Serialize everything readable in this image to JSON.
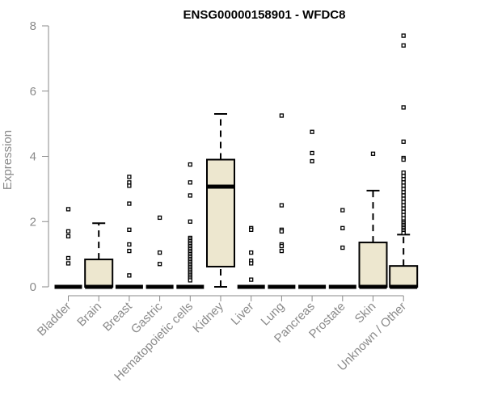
{
  "chart_data": {
    "type": "boxplot",
    "title": "ENSG00000158901 - WFDC8",
    "xlabel": "",
    "ylabel": "Expression",
    "ylim": [
      0,
      8
    ],
    "yticks": [
      0,
      2,
      4,
      6,
      8
    ],
    "grid": false,
    "legend": "none",
    "colors": {
      "box_fill": "#ede7cf",
      "box_stroke": "#000000",
      "axis": "#8a8a8a"
    },
    "categories": [
      "Bladder",
      "Brain",
      "Breast",
      "Gastric",
      "Hematopoietic cells",
      "Kidney",
      "Liver",
      "Lung",
      "Pancreas",
      "Prostate",
      "Skin",
      "Unknown / Other"
    ],
    "boxes": [
      {
        "category": "Bladder",
        "q1": 0,
        "median": 0,
        "q3": 0,
        "whisker_low": 0,
        "whisker_high": 0,
        "outliers": [
          2.38,
          1.7,
          1.55,
          0.88,
          0.72
        ]
      },
      {
        "category": "Brain",
        "q1": 0,
        "median": 0,
        "q3": 0.84,
        "whisker_low": 0,
        "whisker_high": 1.95,
        "outliers": []
      },
      {
        "category": "Breast",
        "q1": 0,
        "median": 0,
        "q3": 0,
        "whisker_low": 0,
        "whisker_high": 0,
        "outliers": [
          3.37,
          3.2,
          3.1,
          2.55,
          1.75,
          1.3,
          1.1,
          0.35
        ]
      },
      {
        "category": "Gastric",
        "q1": 0,
        "median": 0,
        "q3": 0,
        "whisker_low": 0,
        "whisker_high": 0,
        "outliers": [
          2.12,
          1.05,
          0.7
        ]
      },
      {
        "category": "Hematopoietic cells",
        "q1": 0,
        "median": 0,
        "q3": 0,
        "whisker_low": 0,
        "whisker_high": 0,
        "outliers": [
          3.75,
          3.2,
          2.8,
          2.0,
          1.5,
          1.45,
          1.4,
          1.35,
          1.3,
          1.25,
          1.2,
          1.15,
          1.1,
          1.05,
          1.0,
          0.95,
          0.9,
          0.85,
          0.8,
          0.75,
          0.7,
          0.65,
          0.6,
          0.55,
          0.5,
          0.45,
          0.4,
          0.35,
          0.3,
          0.25,
          0.2
        ]
      },
      {
        "category": "Kidney",
        "q1": 0.62,
        "median": 3.07,
        "q3": 3.9,
        "whisker_low": 0,
        "whisker_high": 5.3,
        "outliers": []
      },
      {
        "category": "Liver",
        "q1": 0,
        "median": 0,
        "q3": 0,
        "whisker_low": 0,
        "whisker_high": 0,
        "outliers": [
          1.8,
          1.75,
          1.05,
          0.8,
          0.72,
          0.22
        ]
      },
      {
        "category": "Lung",
        "q1": 0,
        "median": 0,
        "q3": 0,
        "whisker_low": 0,
        "whisker_high": 0,
        "outliers": [
          5.25,
          2.5,
          1.75,
          1.7,
          1.3,
          1.25,
          1.1
        ]
      },
      {
        "category": "Pancreas",
        "q1": 0,
        "median": 0,
        "q3": 0,
        "whisker_low": 0,
        "whisker_high": 0,
        "outliers": [
          4.75,
          4.1,
          3.85
        ]
      },
      {
        "category": "Prostate",
        "q1": 0,
        "median": 0,
        "q3": 0,
        "whisker_low": 0,
        "whisker_high": 0,
        "outliers": [
          2.35,
          1.8,
          1.2
        ]
      },
      {
        "category": "Skin",
        "q1": 0,
        "median": 0,
        "q3": 1.36,
        "whisker_low": 0,
        "whisker_high": 2.95,
        "outliers": [
          4.08
        ]
      },
      {
        "category": "Unknown / Other",
        "q1": 0,
        "median": 0,
        "q3": 0.64,
        "whisker_low": 0,
        "whisker_high": 1.6,
        "outliers": [
          7.7,
          7.4,
          5.5,
          4.45,
          3.95,
          3.9,
          3.5,
          3.4,
          3.3,
          3.2,
          3.1,
          3.0,
          2.9,
          2.8,
          2.7,
          2.6,
          2.5,
          2.4,
          2.3,
          2.2,
          2.1,
          2.0,
          1.95,
          1.9,
          1.85,
          1.8,
          1.75,
          1.7,
          1.65
        ]
      }
    ]
  }
}
